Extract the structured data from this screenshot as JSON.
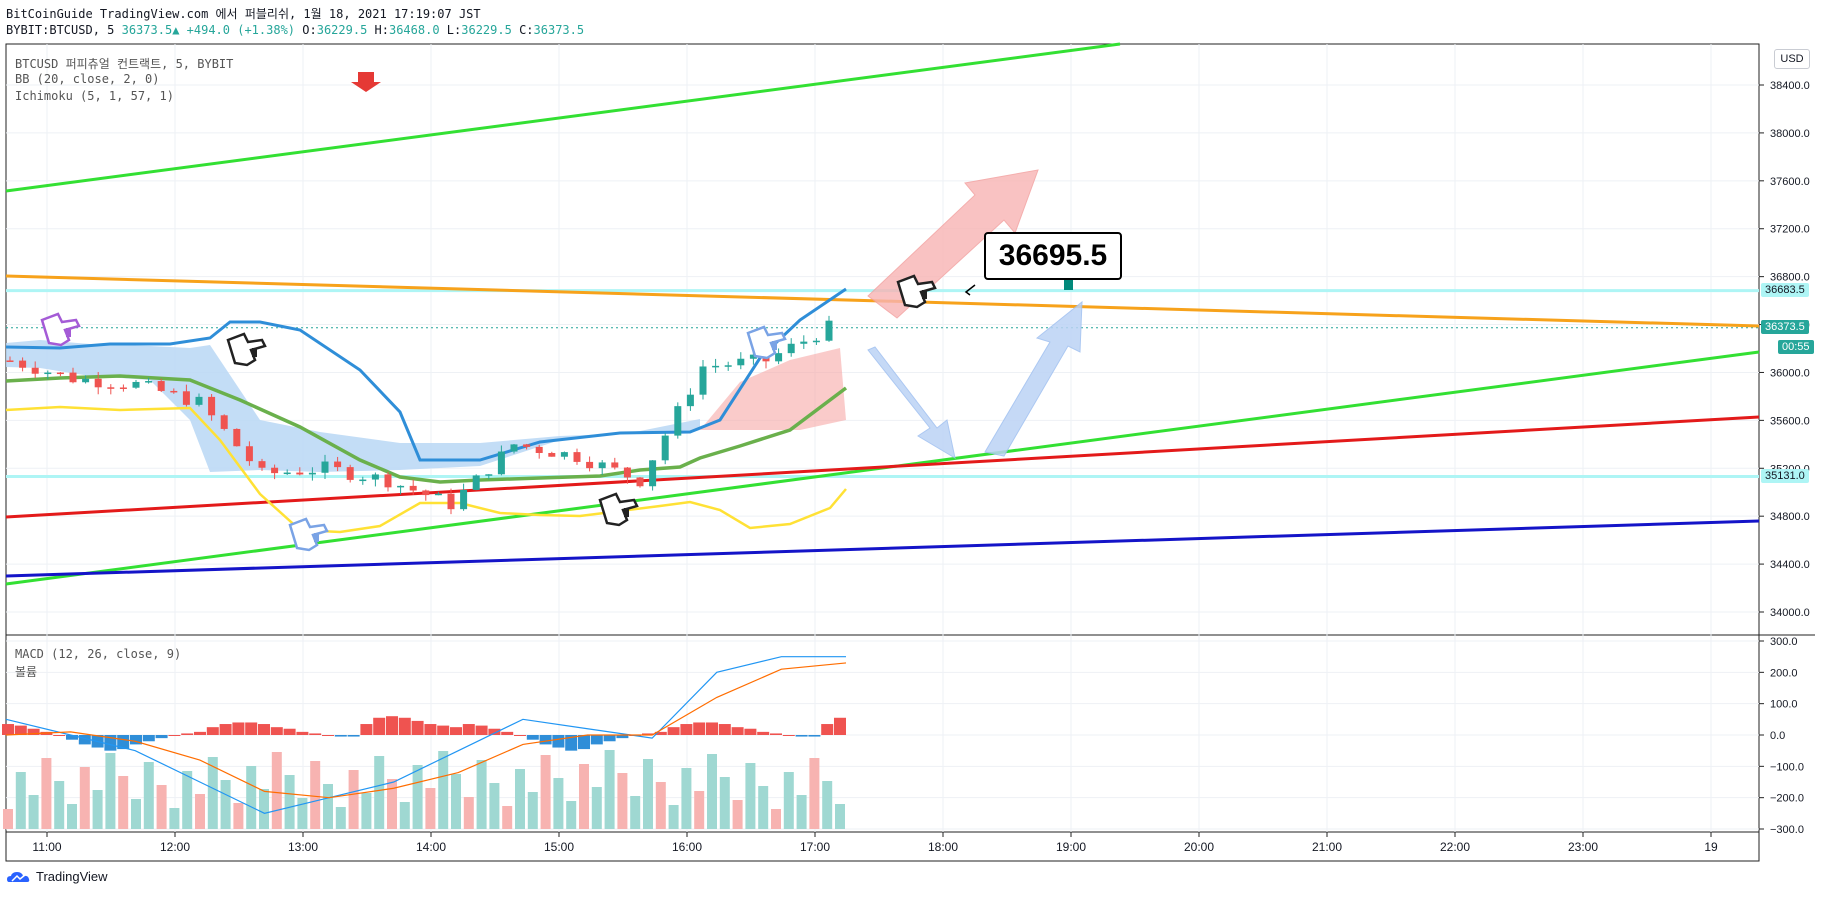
{
  "header": {
    "line1": "BitCoinGuide TradingView.com 에서 퍼블리쉬, 1월 18, 2021 17:19:07 JST",
    "symbol": "BYBIT:BTCUSD, 5",
    "last": "36373.5",
    "arrow": "▲",
    "change": "+494.0 (+1.38%)",
    "o_label": "O:",
    "o": "36229.5",
    "h_label": "H:",
    "h": "36468.0",
    "l_label": "L:",
    "l": "36229.5",
    "c_label": "C:",
    "c": "36373.5"
  },
  "legend": {
    "main": "BTCUSD 퍼피츄얼 컨트랙트, 5, BYBIT",
    "bb": "BB (20, close, 2, 0)",
    "ichimoku": "Ichimoku (5, 1, 57, 1)",
    "macd": "MACD (12, 26, close, 9)",
    "volume": "볼륨"
  },
  "axis": {
    "currency": "USD",
    "price_ticks": [
      "38400.0",
      "38000.0",
      "37600.0",
      "37200.0",
      "36800.0",
      "36400.0",
      "36000.0",
      "35600.0",
      "35200.0",
      "34800.0",
      "34400.0",
      "34000.0"
    ],
    "macd_ticks": [
      "300.0",
      "200.0",
      "100.0",
      "0.0",
      "−100.0",
      "−200.0",
      "−300.0"
    ],
    "time_ticks": [
      "11:00",
      "12:00",
      "13:00",
      "14:00",
      "15:00",
      "16:00",
      "17:00",
      "18:00",
      "19:00",
      "20:00",
      "21:00",
      "22:00",
      "23:00",
      "19"
    ],
    "badges": {
      "level_high": "36683.5",
      "last_price": "36373.5",
      "countdown": "00:55",
      "level_low": "35131.0"
    }
  },
  "annotation": {
    "target": "36695.5"
  },
  "colors": {
    "up": "#26a69a",
    "down": "#ef5350",
    "cloud_up": "#90c3f0",
    "cloud_down": "#f6a8a6",
    "bb_upper": "#2f8ed8",
    "bb_mid": "#6ab04c",
    "bb_lower": "#ffe135",
    "trend_green": "#33e033",
    "trend_orange": "#f7a21b",
    "trend_red": "#e31a1a",
    "trend_blue": "#1414c8",
    "level_cyan": "#aef5f5"
  },
  "brand": "TradingView",
  "chart_data": {
    "type": "candlestick",
    "symbol": "BYBIT:BTCUSD",
    "interval": "5",
    "x": [
      "11:00",
      "11:30",
      "12:00",
      "12:30",
      "13:00",
      "13:30",
      "14:00",
      "14:30",
      "15:00",
      "15:30",
      "16:00",
      "16:30",
      "17:00",
      "17:15"
    ],
    "close": [
      36100,
      35950,
      35900,
      35750,
      35150,
      35200,
      35100,
      34900,
      35400,
      35300,
      35100,
      36050,
      36100,
      36373.5
    ],
    "ylim": [
      33800,
      38700
    ],
    "levels": [
      36683.5,
      35131.0
    ],
    "target": 36695.5,
    "macd": {
      "ylim": [
        -300,
        300
      ],
      "macd_line": [
        50,
        0,
        -50,
        -150,
        -250,
        -200,
        -150,
        -50,
        50,
        20,
        -10,
        200,
        250,
        250
      ],
      "signal": [
        0,
        10,
        -20,
        -80,
        -180,
        -200,
        -170,
        -120,
        -30,
        0,
        0,
        120,
        210,
        230
      ]
    }
  }
}
